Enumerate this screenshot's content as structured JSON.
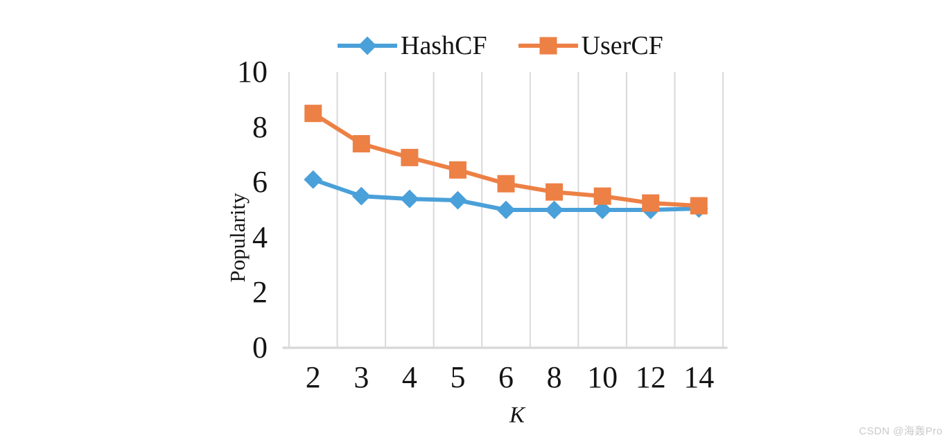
{
  "chart_data": {
    "type": "line",
    "title": "",
    "xlabel": "K",
    "ylabel": "Popularity",
    "categories": [
      "2",
      "3",
      "4",
      "5",
      "6",
      "8",
      "10",
      "12",
      "14"
    ],
    "series": [
      {
        "name": "HashCF",
        "color": "#4AA0D9",
        "marker": "diamond",
        "values": [
          6.1,
          5.5,
          5.4,
          5.35,
          5.0,
          5.0,
          5.0,
          5.0,
          5.05
        ]
      },
      {
        "name": "UserCF",
        "color": "#ED8045",
        "marker": "square",
        "values": [
          8.5,
          7.4,
          6.9,
          6.45,
          5.95,
          5.65,
          5.5,
          5.25,
          5.15
        ]
      }
    ],
    "ylim": [
      0,
      10
    ],
    "yticks": [
      0,
      2,
      4,
      6,
      8,
      10
    ],
    "grid": "vertical-only",
    "gridline_color": "#D9D9D9",
    "axisline_color": "#D9D9D9",
    "legend_position": "top-center"
  },
  "watermark": {
    "text": "CSDN @海轰Pro",
    "color": "#C9C9C9"
  }
}
